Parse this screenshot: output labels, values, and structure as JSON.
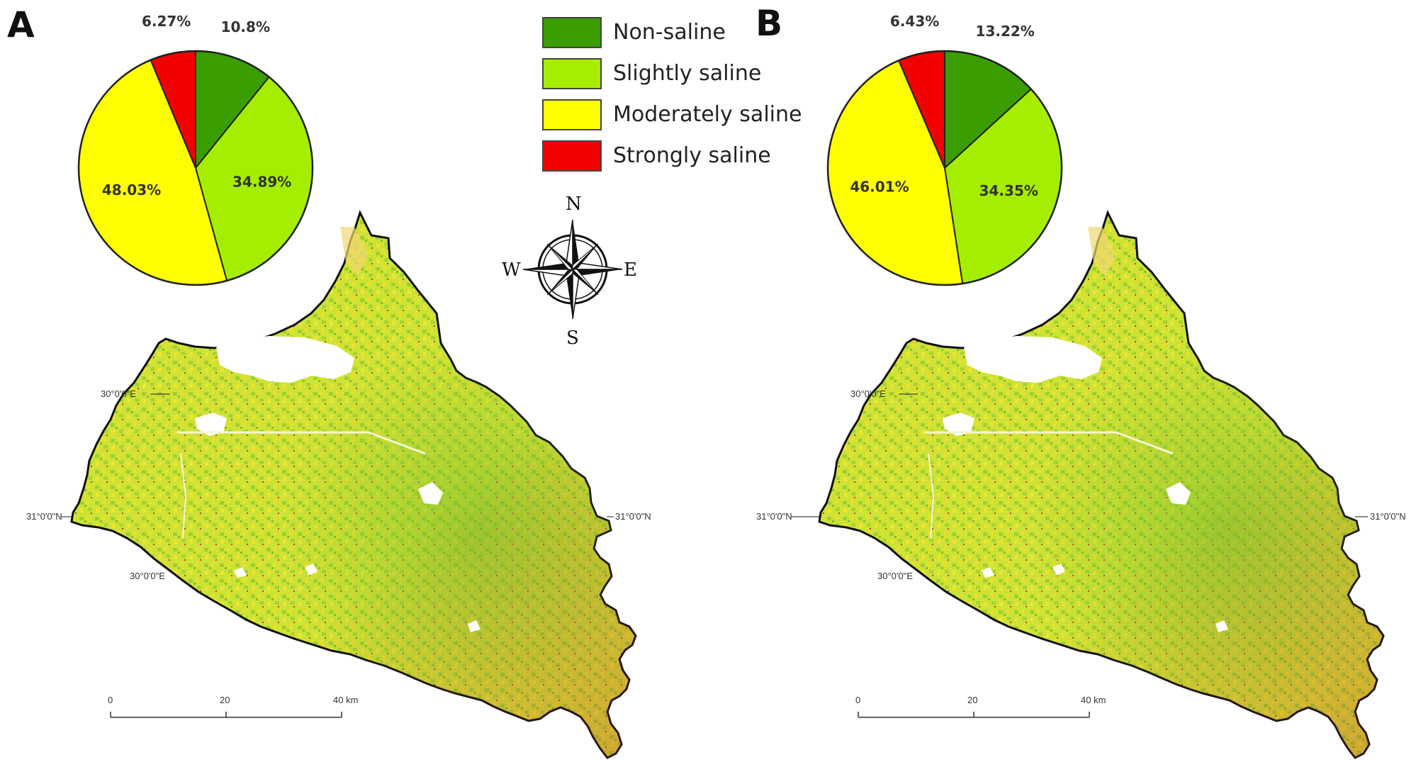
{
  "panels": [
    {
      "id": "A",
      "letter": "A",
      "pie": {
        "type": "pie",
        "values": [
          10.8,
          34.89,
          48.03,
          6.27
        ],
        "labels": [
          "10.8%",
          "34.89%",
          "48.03%",
          "6.27%"
        ]
      },
      "coords": {
        "lon_upper": "30°0'0\"E",
        "lat": "31°0'0\"N",
        "lon_lower": "30°0'0\"E"
      },
      "scale": {
        "ticks": [
          "0",
          "20",
          "40 km"
        ]
      }
    },
    {
      "id": "B",
      "letter": "B",
      "pie": {
        "type": "pie",
        "values": [
          13.22,
          34.35,
          46.01,
          6.43
        ],
        "labels": [
          "13.22%",
          "34.35%",
          "46.01%",
          "6.43%"
        ]
      },
      "coords": {
        "lon_upper": "30°0'0\"E",
        "lat": "31°0'0\"N",
        "lon_lower": "30°0'0\"E"
      },
      "scale": {
        "ticks": [
          "0",
          "20",
          "40 km"
        ]
      }
    }
  ],
  "legend": {
    "items": [
      {
        "label": "Non-saline",
        "color": "#3a9e00"
      },
      {
        "label": "Slightly saline",
        "color": "#a6ee00"
      },
      {
        "label": "Moderately saline",
        "color": "#ffff00"
      },
      {
        "label": "Strongly saline",
        "color": "#f20000"
      }
    ]
  },
  "compass": {
    "n": "N",
    "s": "S",
    "e": "E",
    "w": "W"
  },
  "map_colors": {
    "base": "#d6e63a",
    "green": "#8fcc2a",
    "yellow": "#e8e02c",
    "red": "#c0392b",
    "white": "#ffffff",
    "outline": "#111111"
  }
}
